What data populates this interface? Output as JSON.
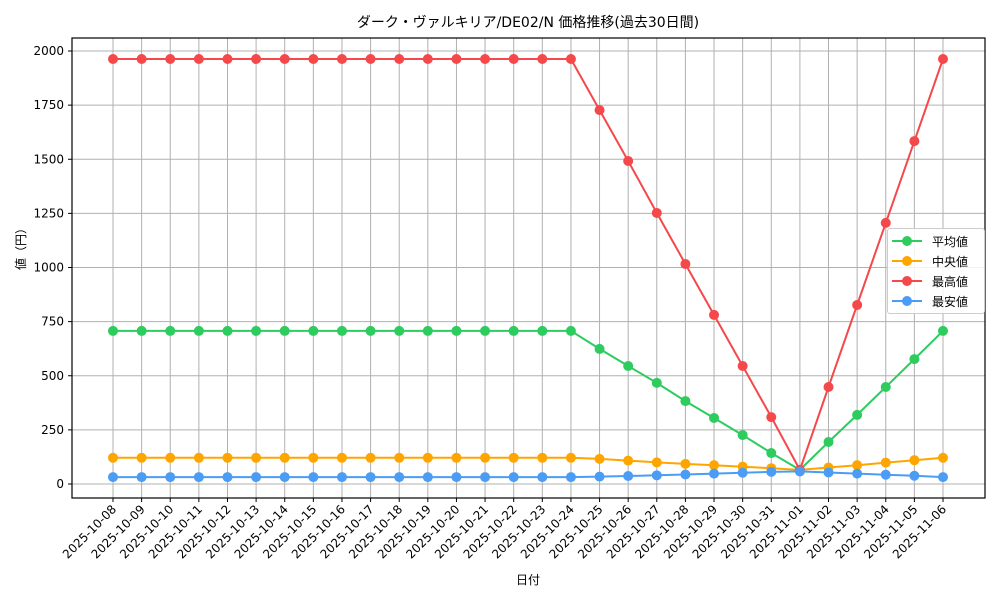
{
  "chart_data": {
    "type": "line",
    "title": "ダーク・ヴァルキリア/DE02/N 価格推移(過去30日間)",
    "xlabel": "日付",
    "ylabel": "値（円）",
    "ylim": [
      -60,
      2060
    ],
    "yticks": [
      0,
      250,
      500,
      750,
      1000,
      1250,
      1500,
      1750,
      2000
    ],
    "grid": true,
    "legend_position": "center right",
    "x": [
      "2025-10-08",
      "2025-10-09",
      "2025-10-10",
      "2025-10-11",
      "2025-10-12",
      "2025-10-13",
      "2025-10-14",
      "2025-10-15",
      "2025-10-16",
      "2025-10-17",
      "2025-10-18",
      "2025-10-19",
      "2025-10-20",
      "2025-10-21",
      "2025-10-22",
      "2025-10-23",
      "2025-10-24",
      "2025-10-25",
      "2025-10-26",
      "2025-10-27",
      "2025-10-28",
      "2025-10-29",
      "2025-10-30",
      "2025-10-31",
      "2025-11-01",
      "2025-11-02",
      "2025-11-03",
      "2025-11-04",
      "2025-11-05",
      "2025-11-06"
    ],
    "series": [
      {
        "name": "平均値",
        "color": "#2ecc5f",
        "values": [
          707,
          707,
          707,
          707,
          707,
          707,
          707,
          707,
          707,
          707,
          707,
          707,
          707,
          707,
          707,
          707,
          707,
          624,
          545,
          467,
          383,
          305,
          226,
          143,
          65,
          194,
          319,
          448,
          577,
          707
        ]
      },
      {
        "name": "中央値",
        "color": "#ffa500",
        "values": [
          121,
          121,
          121,
          121,
          121,
          121,
          121,
          121,
          121,
          121,
          121,
          121,
          121,
          121,
          121,
          121,
          121,
          116,
          108,
          100,
          93,
          87,
          80,
          73,
          65,
          76,
          87,
          99,
          110,
          121
        ]
      },
      {
        "name": "最高値",
        "color": "#f5484b",
        "values": [
          1963,
          1963,
          1963,
          1963,
          1963,
          1963,
          1963,
          1963,
          1963,
          1963,
          1963,
          1963,
          1963,
          1963,
          1963,
          1963,
          1963,
          1727,
          1492,
          1252,
          1016,
          781,
          545,
          309,
          65,
          448,
          827,
          1206,
          1584,
          1963
        ]
      },
      {
        "name": "最安値",
        "color": "#4b9cf5",
        "values": [
          32,
          32,
          32,
          32,
          32,
          32,
          32,
          32,
          32,
          32,
          32,
          32,
          32,
          32,
          32,
          32,
          32,
          34,
          37,
          40,
          44,
          48,
          52,
          56,
          58,
          53,
          48,
          43,
          38,
          32
        ]
      }
    ]
  }
}
